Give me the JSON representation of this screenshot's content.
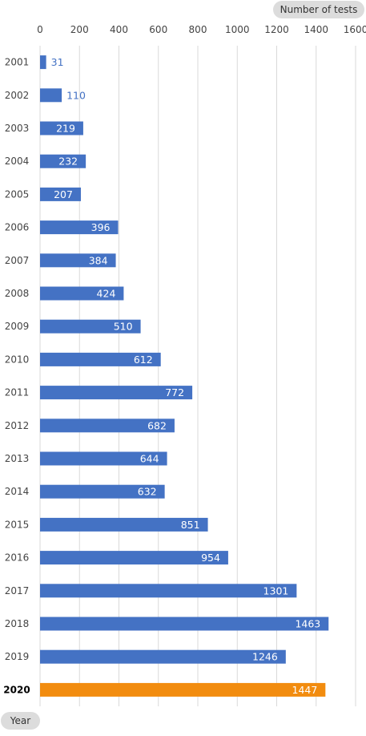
{
  "chart_data": {
    "type": "bar",
    "orientation": "horizontal",
    "xlabel": "Number of tests",
    "ylabel": "Year",
    "xlim": [
      0,
      1600
    ],
    "x_ticks": [
      "0",
      "200",
      "400",
      "600",
      "800",
      "1000",
      "1200",
      "1400",
      "1600"
    ],
    "grid": true,
    "categories": [
      "2001",
      "2002",
      "2003",
      "2004",
      "2005",
      "2006",
      "2007",
      "2008",
      "2009",
      "2010",
      "2011",
      "2012",
      "2013",
      "2014",
      "2015",
      "2016",
      "2017",
      "2018",
      "2019",
      "2020"
    ],
    "values": [
      31,
      110,
      219,
      232,
      207,
      396,
      384,
      424,
      510,
      612,
      772,
      682,
      644,
      632,
      851,
      954,
      1301,
      1463,
      1246,
      1447
    ],
    "highlight_category": "2020",
    "colors": {
      "bar": "#4472c4",
      "highlight": "#f28c0f",
      "grid": "#d9d9d9",
      "label_outside": "#4472c4",
      "label_inside": "#ffffff"
    }
  }
}
